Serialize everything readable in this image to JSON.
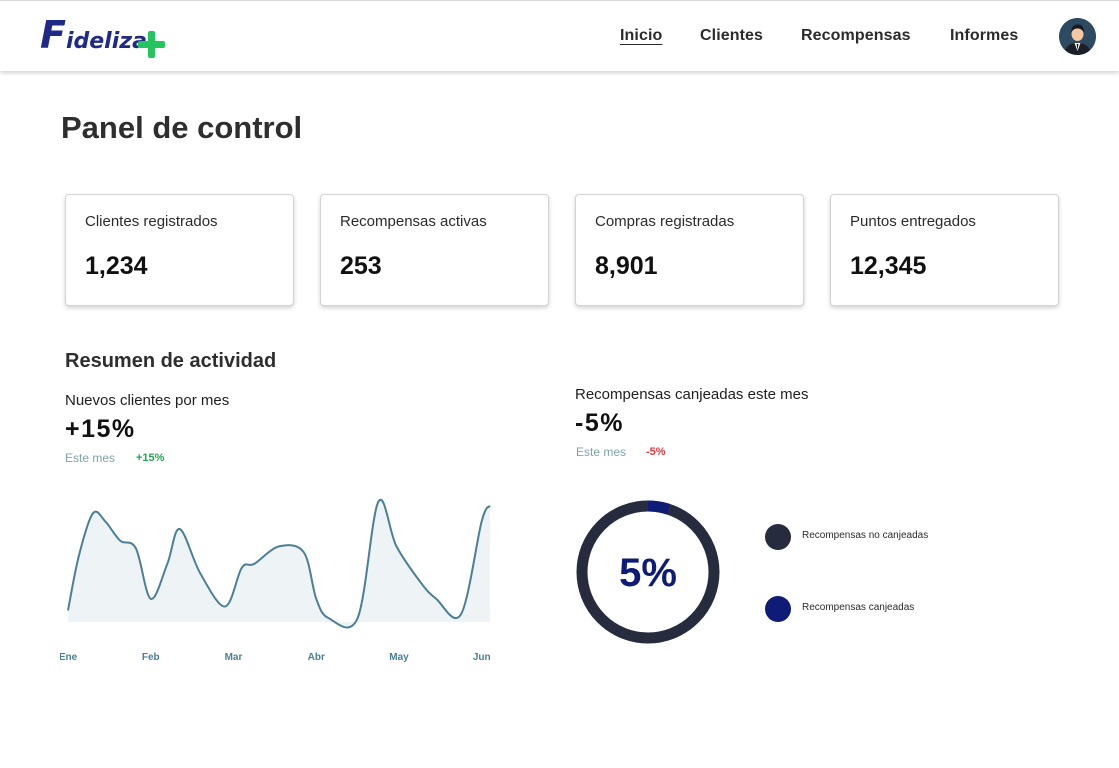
{
  "header": {
    "logo_initial": "F",
    "logo_rest": "ideliza",
    "nav": [
      {
        "label": "Inicio",
        "active": true
      },
      {
        "label": "Clientes",
        "active": false
      },
      {
        "label": "Recompensas",
        "active": false
      },
      {
        "label": "Informes",
        "active": false
      }
    ],
    "avatar_icon": "user-avatar-icon"
  },
  "page": {
    "title": "Panel de control"
  },
  "stats": [
    {
      "label": "Clientes registrados",
      "value": "1,234"
    },
    {
      "label": "Recompensas activas",
      "value": "253"
    },
    {
      "label": "Compras registradas",
      "value": "8,901"
    },
    {
      "label": "Puntos entregados",
      "value": "12,345"
    }
  ],
  "activity": {
    "title": "Resumen de actividad",
    "new_clients": {
      "label": "Nuevos clientes por mes",
      "value": "+15%",
      "period": "Este mes",
      "delta": "+15%"
    },
    "redeemed": {
      "label": "Recompensas canjeadas este mes",
      "value": "-5%",
      "period": "Este mes",
      "delta": "-5%",
      "center_label": "5%",
      "legend": [
        {
          "label": "Recompensas no canjeadas",
          "color": "#262b3d"
        },
        {
          "label": "Recompensas canjeadas",
          "color": "#0f1c77"
        }
      ]
    }
  },
  "chart_data": [
    {
      "type": "line",
      "title": "Nuevos clientes por mes",
      "categories": [
        "Ene",
        "Feb",
        "Mar",
        "Abr",
        "May",
        "Jun"
      ],
      "x": [
        0,
        0.13,
        0.3,
        0.45,
        0.63,
        0.82,
        1.0,
        1.2,
        1.35,
        1.6,
        1.9,
        2.1,
        2.25,
        2.55,
        2.85,
        3.0,
        3.15,
        3.5,
        3.75,
        3.97,
        4.27,
        4.45,
        4.75,
        5.0,
        5.1
      ],
      "values": [
        6,
        34,
        56,
        52,
        42,
        38,
        12,
        30,
        48,
        25,
        8,
        28,
        30,
        39,
        36,
        12,
        2,
        2,
        62,
        39,
        20,
        12,
        4,
        52,
        60
      ],
      "color": "#4a7f96",
      "fill": "#eef4f6",
      "grid": false
    },
    {
      "type": "pie",
      "title": "Recompensas canjeadas este mes",
      "categories": [
        "Recompensas no canjeadas",
        "Recompensas canjeadas"
      ],
      "values": [
        95,
        5
      ],
      "colors": [
        "#262b3d",
        "#0f1c77"
      ]
    }
  ]
}
